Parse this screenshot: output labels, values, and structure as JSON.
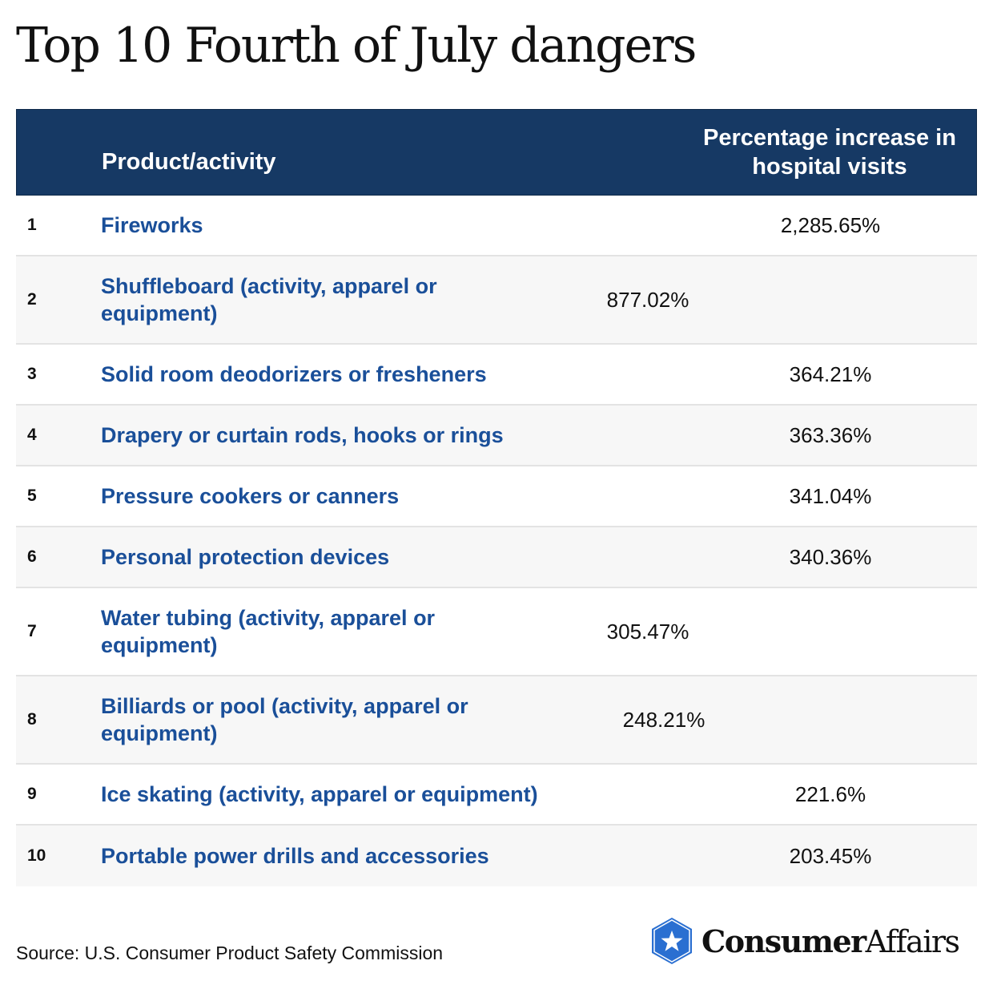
{
  "title": "Top 10 Fourth of July dangers",
  "table": {
    "headers": {
      "product": "Product/activity",
      "percentage_line1": "Percentage increase in",
      "percentage_line2": "hospital visits"
    },
    "rows": [
      {
        "rank": "1",
        "product": "Fireworks",
        "percentage": "2,285.65%"
      },
      {
        "rank": "2",
        "product": "Shuffleboard (activity, apparel or equipment)",
        "percentage": "877.02%"
      },
      {
        "rank": "3",
        "product": "Solid room deodorizers or fresheners",
        "percentage": "364.21%"
      },
      {
        "rank": "4",
        "product": "Drapery or curtain rods, hooks or rings",
        "percentage": "363.36%"
      },
      {
        "rank": "5",
        "product": "Pressure cookers or canners",
        "percentage": "341.04%"
      },
      {
        "rank": "6",
        "product": "Personal protection devices",
        "percentage": "340.36%"
      },
      {
        "rank": "7",
        "product": "Water tubing (activity, apparel or equipment)",
        "percentage": "305.47%"
      },
      {
        "rank": "8",
        "product": "Billiards or pool (activity, apparel or equipment)",
        "percentage": "248.21%"
      },
      {
        "rank": "9",
        "product": "Ice skating (activity, apparel or equipment)",
        "percentage": "221.6%"
      },
      {
        "rank": "10",
        "product": "Portable power drills and accessories",
        "percentage": "203.45%"
      }
    ]
  },
  "chart_data": {
    "type": "table",
    "title": "Top 10 Fourth of July dangers",
    "columns": [
      "",
      "Product/activity",
      "Percentage increase in hospital visits"
    ],
    "categories": [
      "Fireworks",
      "Shuffleboard (activity, apparel or equipment)",
      "Solid room deodorizers or fresheners",
      "Drapery or curtain rods, hooks or rings",
      "Pressure cookers or canners",
      "Personal protection devices",
      "Water tubing (activity, apparel or equipment)",
      "Billiards or pool (activity, apparel or equipment)",
      "Ice skating (activity, apparel or equipment)",
      "Portable power drills and accessories"
    ],
    "values": [
      2285.65,
      877.02,
      364.21,
      363.36,
      341.04,
      340.36,
      305.47,
      248.21,
      221.6,
      203.45
    ]
  },
  "footer": {
    "source": "Source: U.S. Consumer Product Safety Commission",
    "logo_bold": "Consumer",
    "logo_regular": "Affairs",
    "logo_icon": "star-shield-icon"
  },
  "colors": {
    "header_bg": "#163964",
    "product_text": "#1a4f99",
    "logo_blue": "#2a6fd1"
  }
}
